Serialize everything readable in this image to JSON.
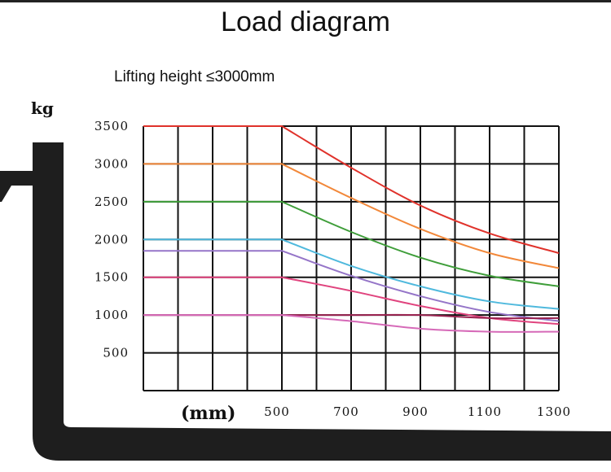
{
  "title": "Load diagram",
  "subtitle": "Lifting height ≤3000mm",
  "chart_data": {
    "type": "line",
    "ylabel": "kg",
    "xlabel": "(mm)",
    "x_ticks": [
      500,
      700,
      900,
      1100,
      1300
    ],
    "y_ticks": [
      500,
      1000,
      1500,
      2000,
      2500,
      3000,
      3500
    ],
    "xlim": [
      100,
      1300
    ],
    "ylim": [
      0,
      3500
    ],
    "grid": true,
    "legend": "none",
    "x": [
      100,
      500,
      700,
      900,
      1100,
      1300
    ],
    "series": [
      {
        "color": "#e0322b",
        "values": [
          3500,
          3500,
          2950,
          2450,
          2080,
          1820
        ]
      },
      {
        "color": "#f2883a",
        "values": [
          3000,
          3000,
          2550,
          2140,
          1820,
          1620
        ]
      },
      {
        "color": "#3f9e3a",
        "values": [
          2500,
          2500,
          2100,
          1760,
          1520,
          1380
        ]
      },
      {
        "color": "#4fb9dd",
        "values": [
          2000,
          2000,
          1650,
          1380,
          1180,
          1080
        ]
      },
      {
        "color": "#9575c8",
        "values": [
          1850,
          1850,
          1520,
          1250,
          1040,
          920
        ]
      },
      {
        "color": "#e0447e",
        "values": [
          1500,
          1500,
          1320,
          1120,
          960,
          880
        ]
      },
      {
        "color": "#9a2350",
        "values": [
          1000,
          1000,
          1000,
          1000,
          960,
          960
        ]
      },
      {
        "color": "#d66ab8",
        "values": [
          1000,
          1000,
          920,
          820,
          780,
          780
        ]
      }
    ]
  }
}
